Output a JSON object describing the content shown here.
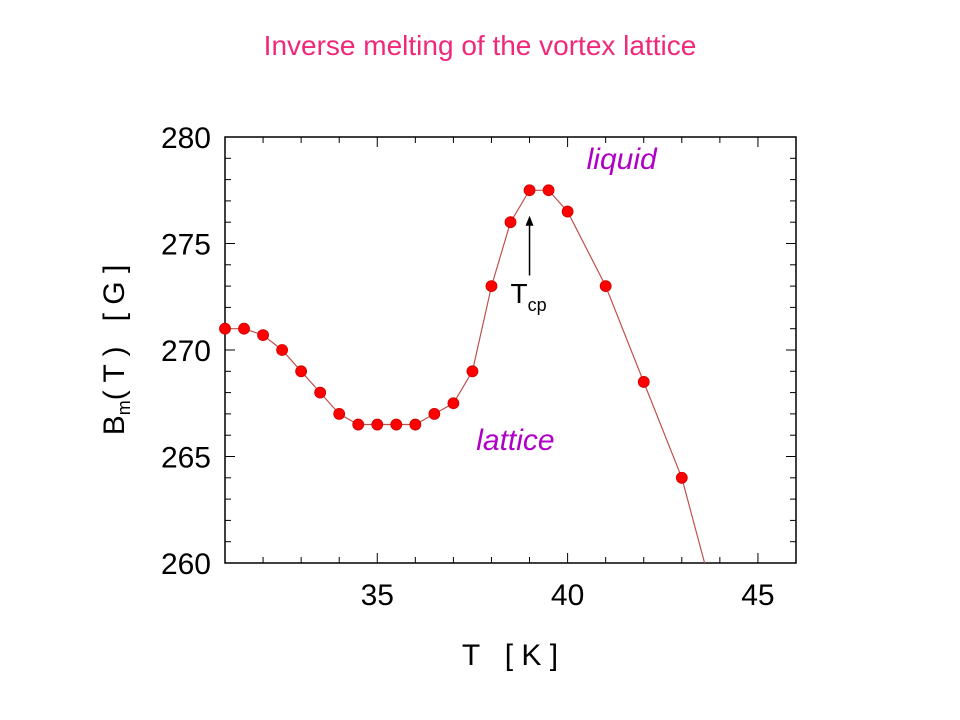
{
  "title": "Inverse melting of the vortex lattice",
  "chart_data": {
    "type": "line",
    "title": "Inverse melting of the vortex lattice",
    "xlabel": "T   [ K ]",
    "ylabel": {
      "base": "B",
      "sub": "m",
      "rest": "( T )   [ G ]"
    },
    "xlim": [
      31,
      46
    ],
    "ylim": [
      260,
      280
    ],
    "xticks": [
      35,
      40,
      45
    ],
    "yticks": [
      260,
      265,
      270,
      275,
      280
    ],
    "grid": false,
    "series": [
      {
        "color": "#ff0000",
        "line_color": "#c0504d",
        "x": [
          31.0,
          31.5,
          32.0,
          32.5,
          33.0,
          33.5,
          34.0,
          34.5,
          35.0,
          35.5,
          36.0,
          36.5,
          37.0,
          37.5,
          38.0,
          38.5,
          39.0,
          39.5,
          40.0,
          41.0,
          42.0,
          43.0
        ],
        "y": [
          271.0,
          271.0,
          270.7,
          270.0,
          269.0,
          268.0,
          267.0,
          266.5,
          266.5,
          266.5,
          266.5,
          267.0,
          267.5,
          269.0,
          273.0,
          276.0,
          277.5,
          277.5,
          276.5,
          273.0,
          268.5,
          264.0
        ],
        "extension": {
          "x": [
            43.0,
            43.6
          ],
          "y": [
            264.0,
            260.0
          ]
        }
      }
    ],
    "annotations": [
      {
        "text": "liquid",
        "x": 40.5,
        "y": 278.5,
        "color": "#b000c8"
      },
      {
        "text": "lattice",
        "x": 37.6,
        "y": 265.3,
        "color": "#b000c8"
      },
      {
        "text": "T",
        "sub": "cp",
        "x": 38.5,
        "y": 272.2,
        "arrow_to": [
          39.0,
          276.3
        ],
        "arrow_from": [
          39.0,
          273.5
        ]
      }
    ]
  }
}
